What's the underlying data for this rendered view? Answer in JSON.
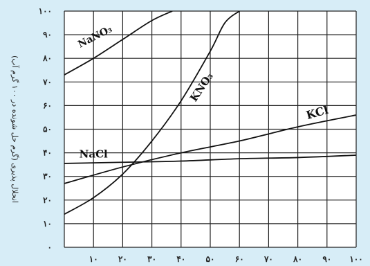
{
  "chart_data": {
    "type": "line",
    "ylabel": "انحلال پذیری (گرم حل شونده در ۱۰۰ گرم آب)",
    "xlabel": "",
    "xlim": [
      0,
      100
    ],
    "ylim": [
      0,
      100
    ],
    "x_ticks": [
      10,
      20,
      30,
      40,
      50,
      60,
      70,
      80,
      90,
      100
    ],
    "x_tick_labels": [
      "۱۰",
      "۲۰",
      "۳۰",
      "۴۰",
      "۵۰",
      "۶۰",
      "۷۰",
      "۸۰",
      "۹۰",
      "۱۰۰"
    ],
    "y_ticks": [
      0,
      10,
      20,
      30,
      40,
      50,
      60,
      70,
      80,
      90,
      100
    ],
    "y_tick_labels": [
      "۰",
      "۱۰",
      "۲۰",
      "۳۰",
      "۴۰",
      "۵۰",
      "۶۰",
      "۷۰",
      "۸۰",
      "۹۰",
      "۱۰۰"
    ],
    "grid": true,
    "series": [
      {
        "name": "NaNO₃",
        "x": [
          0,
          10,
          20,
          30,
          37
        ],
        "y": [
          73,
          80,
          88,
          96,
          100
        ]
      },
      {
        "name": "KNO₃",
        "x": [
          0,
          10,
          20,
          30,
          40,
          50,
          55,
          60
        ],
        "y": [
          14,
          21,
          31,
          45,
          62,
          83,
          95,
          100
        ]
      },
      {
        "name": "KCl",
        "x": [
          0,
          20,
          40,
          60,
          80,
          100
        ],
        "y": [
          27,
          34,
          40,
          45,
          51,
          56
        ]
      },
      {
        "name": "NaCl",
        "x": [
          0,
          20,
          40,
          60,
          80,
          100
        ],
        "y": [
          35.5,
          36,
          36.5,
          37.5,
          38,
          39
        ]
      }
    ]
  }
}
